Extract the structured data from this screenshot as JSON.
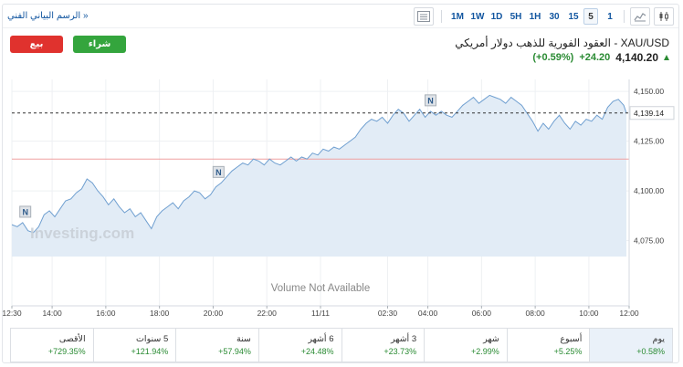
{
  "toolbar": {
    "technical_chart_link": "الرسم البياني الفني »",
    "timeframes": [
      "1M",
      "1W",
      "1D",
      "5H",
      "1H",
      "30",
      "15",
      "5",
      "1"
    ],
    "active_timeframe": "5"
  },
  "buttons": {
    "sell": "بيع",
    "buy": "شراء"
  },
  "instrument": {
    "title": "XAU/USD - العقود الفورية للذهب دولار أمريكي",
    "price": "4,140.20",
    "change": "+24.20",
    "change_pct": "(+0.59%)"
  },
  "chart": {
    "watermark": "Investing.com",
    "volume_note": "Volume Not Available",
    "current_price_label": "4,139.14",
    "y_ticks": [
      "4,150.00",
      "4,125.00",
      "4,100.00",
      "4,075.00"
    ],
    "x_ticks": [
      "12:30",
      "14:00",
      "16:00",
      "18:00",
      "20:00",
      "22:00",
      "11/11",
      "02:30",
      "04:00",
      "06:00",
      "08:00",
      "10:00",
      "12:00"
    ],
    "news_marker": "N"
  },
  "chart_data": {
    "type": "area",
    "ylim": [
      4067,
      4156
    ],
    "ytick_values": [
      4150,
      4125,
      4100,
      4075
    ],
    "current_value": 4139.14,
    "reference_value": 4116,
    "x_tick_positions_hours": [
      0,
      1.5,
      3.5,
      5.5,
      7.5,
      9.5,
      11.5,
      14,
      15.5,
      17.5,
      19.5,
      21.5,
      23
    ],
    "x_range_hours": [
      0,
      23
    ],
    "series": [
      {
        "points": [
          [
            0,
            4083
          ],
          [
            0.2,
            4082
          ],
          [
            0.4,
            4084
          ],
          [
            0.6,
            4080
          ],
          [
            0.8,
            4079
          ],
          [
            1.0,
            4082
          ],
          [
            1.2,
            4088
          ],
          [
            1.4,
            4090
          ],
          [
            1.6,
            4087
          ],
          [
            1.8,
            4091
          ],
          [
            2.0,
            4095
          ],
          [
            2.2,
            4096
          ],
          [
            2.4,
            4099
          ],
          [
            2.6,
            4101
          ],
          [
            2.8,
            4106
          ],
          [
            3.0,
            4104
          ],
          [
            3.2,
            4100
          ],
          [
            3.4,
            4097
          ],
          [
            3.6,
            4093
          ],
          [
            3.8,
            4096
          ],
          [
            4.0,
            4092
          ],
          [
            4.2,
            4089
          ],
          [
            4.4,
            4091
          ],
          [
            4.6,
            4087
          ],
          [
            4.8,
            4089
          ],
          [
            5.0,
            4085
          ],
          [
            5.2,
            4081
          ],
          [
            5.4,
            4087
          ],
          [
            5.6,
            4090
          ],
          [
            5.8,
            4092
          ],
          [
            6.0,
            4094
          ],
          [
            6.2,
            4091
          ],
          [
            6.4,
            4095
          ],
          [
            6.6,
            4097
          ],
          [
            6.8,
            4100
          ],
          [
            7.0,
            4099
          ],
          [
            7.2,
            4096
          ],
          [
            7.4,
            4098
          ],
          [
            7.6,
            4102
          ],
          [
            7.8,
            4104
          ],
          [
            8.0,
            4107
          ],
          [
            8.2,
            4110
          ],
          [
            8.4,
            4112
          ],
          [
            8.6,
            4114
          ],
          [
            8.8,
            4113
          ],
          [
            9.0,
            4116
          ],
          [
            9.2,
            4115
          ],
          [
            9.4,
            4113
          ],
          [
            9.6,
            4116
          ],
          [
            9.8,
            4114
          ],
          [
            10.0,
            4113
          ],
          [
            10.2,
            4115
          ],
          [
            10.4,
            4117
          ],
          [
            10.6,
            4115
          ],
          [
            10.8,
            4117
          ],
          [
            11.0,
            4116
          ],
          [
            11.2,
            4119
          ],
          [
            11.4,
            4118
          ],
          [
            11.6,
            4121
          ],
          [
            11.8,
            4120
          ],
          [
            12.0,
            4122
          ],
          [
            12.2,
            4121
          ],
          [
            12.4,
            4123
          ],
          [
            12.6,
            4125
          ],
          [
            12.8,
            4127
          ],
          [
            13.0,
            4131
          ],
          [
            13.2,
            4134
          ],
          [
            13.4,
            4136
          ],
          [
            13.6,
            4135
          ],
          [
            13.8,
            4137
          ],
          [
            14.0,
            4134
          ],
          [
            14.2,
            4138
          ],
          [
            14.4,
            4141
          ],
          [
            14.6,
            4139
          ],
          [
            14.8,
            4135
          ],
          [
            15.0,
            4138
          ],
          [
            15.2,
            4141
          ],
          [
            15.4,
            4137
          ],
          [
            15.6,
            4140
          ],
          [
            15.8,
            4138
          ],
          [
            16.0,
            4140
          ],
          [
            16.2,
            4138
          ],
          [
            16.4,
            4137
          ],
          [
            16.6,
            4140
          ],
          [
            16.8,
            4143
          ],
          [
            17.0,
            4145
          ],
          [
            17.2,
            4147
          ],
          [
            17.4,
            4144
          ],
          [
            17.6,
            4146
          ],
          [
            17.8,
            4148
          ],
          [
            18.0,
            4147
          ],
          [
            18.2,
            4146
          ],
          [
            18.4,
            4144
          ],
          [
            18.6,
            4147
          ],
          [
            18.8,
            4145
          ],
          [
            19.0,
            4143
          ],
          [
            19.2,
            4139
          ],
          [
            19.4,
            4135
          ],
          [
            19.6,
            4130
          ],
          [
            19.8,
            4134
          ],
          [
            20.0,
            4131
          ],
          [
            20.2,
            4135
          ],
          [
            20.4,
            4138
          ],
          [
            20.6,
            4134
          ],
          [
            20.8,
            4131
          ],
          [
            21.0,
            4135
          ],
          [
            21.2,
            4133
          ],
          [
            21.4,
            4136
          ],
          [
            21.6,
            4135
          ],
          [
            21.8,
            4138
          ],
          [
            22.0,
            4136
          ],
          [
            22.2,
            4142
          ],
          [
            22.4,
            4145
          ],
          [
            22.6,
            4146
          ],
          [
            22.8,
            4143
          ],
          [
            22.9,
            4139
          ]
        ]
      }
    ],
    "news_markers_hours": [
      0.5,
      7.7,
      15.6
    ],
    "grid": true
  },
  "periods": [
    {
      "label": "الأقصى",
      "value": "+729.35%"
    },
    {
      "label": "5 سنوات",
      "value": "+121.94%"
    },
    {
      "label": "سنة",
      "value": "+57.94%"
    },
    {
      "label": "6 أشهر",
      "value": "+24.48%"
    },
    {
      "label": "3 أشهر",
      "value": "+23.73%"
    },
    {
      "label": "شهر",
      "value": "+2.99%"
    },
    {
      "label": "أسبوع",
      "value": "+5.25%"
    },
    {
      "label": "يوم",
      "value": "+0.58%"
    }
  ],
  "active_period": 7,
  "colors": {
    "line": "#6f9fd0",
    "fill": "#e2ecf6",
    "up": "#2a8b33",
    "sell": "#e0322e",
    "buy": "#34a53d",
    "link": "#1256a0",
    "reference_line": "#f0a0a0"
  }
}
